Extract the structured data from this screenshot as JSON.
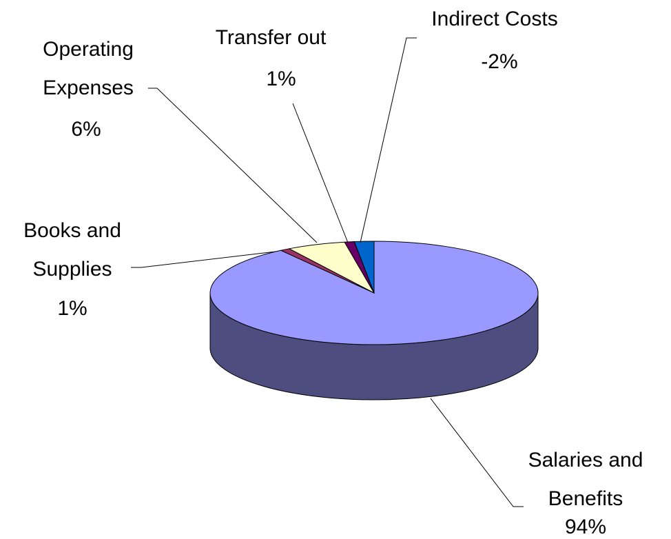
{
  "chart_data": {
    "type": "pie3d",
    "categories": [
      "Salaries and Benefits",
      "Books and Supplies",
      "Operating Expenses",
      "Transfer out",
      "Indirect Costs"
    ],
    "values": [
      94,
      1,
      6,
      1,
      -2
    ],
    "value_labels": [
      "94%",
      "1%",
      "6%",
      "1%",
      "-2%"
    ],
    "colors": [
      "#9999ff",
      "#993366",
      "#ffffcc",
      "#660066",
      "#0066cc"
    ]
  }
}
